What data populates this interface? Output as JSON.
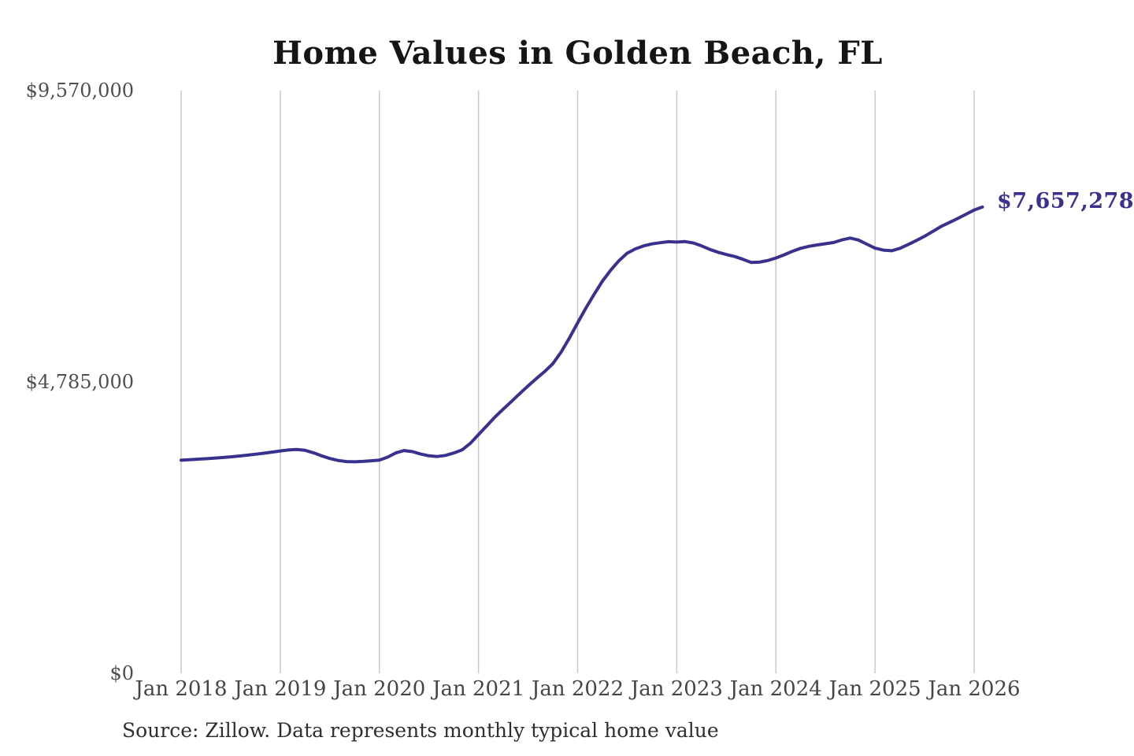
{
  "chart": {
    "title": "Home Values in Golden Beach, FL",
    "y_tick_labels": [
      "$9,570,000",
      "$4,785,000",
      "$0"
    ],
    "x_tick_labels": [
      "Jan 2018",
      "Jan 2019",
      "Jan 2020",
      "Jan 2021",
      "Jan 2022",
      "Jan 2023",
      "Jan 2024",
      "Jan 2025",
      "Jan 2026"
    ],
    "end_annotation": "$7,657,278",
    "source": "Source: Zillow. Data represents monthly typical home value"
  },
  "colors": {
    "line": "#39318e",
    "annotation": "#39318e",
    "grid": "#c9c9c9",
    "title": "#151515",
    "axis_label": "#4f4f4f",
    "background": "#ffffff"
  },
  "chart_data": {
    "type": "line",
    "title": "Home Values in Golden Beach, FL",
    "series_name": "Monthly typical home value (USD)",
    "x_start": "2018-01",
    "x_frequency": "monthly",
    "x_tick_labels": [
      "Jan 2018",
      "Jan 2019",
      "Jan 2020",
      "Jan 2021",
      "Jan 2022",
      "Jan 2023",
      "Jan 2024",
      "Jan 2025",
      "Jan 2026"
    ],
    "x_tick_interval_months": 12,
    "ylim": [
      0,
      9570000
    ],
    "y_tick_values": [
      0,
      4785000,
      9570000
    ],
    "grid": "vertical-only",
    "legend": false,
    "latest_value": 7657278,
    "latest_value_label": "$7,657,278",
    "values": [
      3500000,
      3508000,
      3516000,
      3524000,
      3533000,
      3543000,
      3555000,
      3568000,
      3582000,
      3598000,
      3615000,
      3633000,
      3652000,
      3668000,
      3676000,
      3662000,
      3622000,
      3572000,
      3528000,
      3496000,
      3478000,
      3474000,
      3480000,
      3490000,
      3502000,
      3550000,
      3620000,
      3658000,
      3640000,
      3601000,
      3572000,
      3560000,
      3578000,
      3618000,
      3668000,
      3775000,
      3920000,
      4065000,
      4210000,
      4340000,
      4465000,
      4595000,
      4720000,
      4840000,
      4955000,
      5085000,
      5275000,
      5505000,
      5755000,
      6000000,
      6225000,
      6440000,
      6620000,
      6775000,
      6900000,
      6970000,
      7020000,
      7052000,
      7072000,
      7088000,
      7082000,
      7090000,
      7068000,
      7020000,
      6962000,
      6915000,
      6878000,
      6845000,
      6800000,
      6748000,
      6752000,
      6778000,
      6820000,
      6872000,
      6930000,
      6980000,
      7012000,
      7035000,
      7055000,
      7075000,
      7118000,
      7148000,
      7115000,
      7048000,
      6982000,
      6950000,
      6940000,
      6978000,
      7040000,
      7108000,
      7178000,
      7258000,
      7338000,
      7402000,
      7468000,
      7538000,
      7608000,
      7657278
    ]
  }
}
